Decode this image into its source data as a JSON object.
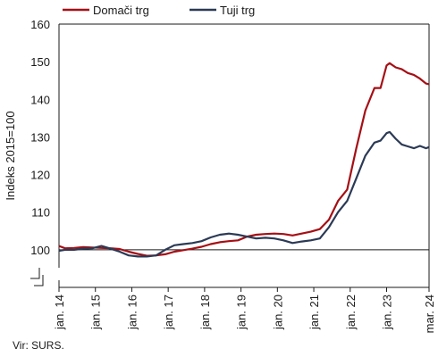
{
  "chart_data": {
    "type": "line",
    "title": "",
    "xlabel": "",
    "ylabel": "Indeks 2015=100",
    "ylim": [
      90,
      160
    ],
    "yticks": [
      100,
      110,
      120,
      130,
      140,
      150,
      160
    ],
    "reference_line": 100,
    "axis_break": true,
    "grid": false,
    "legend_position": "top",
    "x_tick_labels": [
      "jan. 14",
      "jan. 15",
      "jan. 16",
      "jan. 17",
      "jan. 18",
      "jan. 19",
      "jan. 20",
      "jan. 21",
      "jan. 22",
      "jan. 23",
      "mar. 24"
    ],
    "x_tick_values": [
      "2014-01",
      "2015-01",
      "2016-01",
      "2017-01",
      "2018-01",
      "2019-01",
      "2020-01",
      "2021-01",
      "2022-01",
      "2023-01",
      "2024-03"
    ],
    "x_start": "2014-01",
    "x_end": "2024-03",
    "series": [
      {
        "name": "Domači trg",
        "color": "#a50f15",
        "points": [
          [
            "2014-01",
            101.0
          ],
          [
            "2014-03",
            100.4
          ],
          [
            "2014-06",
            100.5
          ],
          [
            "2014-09",
            100.7
          ],
          [
            "2014-12",
            100.6
          ],
          [
            "2015-03",
            100.5
          ],
          [
            "2015-06",
            100.4
          ],
          [
            "2015-09",
            100.2
          ],
          [
            "2015-12",
            99.5
          ],
          [
            "2016-03",
            98.9
          ],
          [
            "2016-06",
            98.4
          ],
          [
            "2016-09",
            98.5
          ],
          [
            "2016-12",
            98.8
          ],
          [
            "2017-03",
            99.5
          ],
          [
            "2017-06",
            99.9
          ],
          [
            "2017-09",
            100.3
          ],
          [
            "2017-12",
            100.8
          ],
          [
            "2018-03",
            101.5
          ],
          [
            "2018-06",
            102.0
          ],
          [
            "2018-09",
            102.3
          ],
          [
            "2018-12",
            102.5
          ],
          [
            "2019-03",
            103.5
          ],
          [
            "2019-06",
            104.0
          ],
          [
            "2019-09",
            104.2
          ],
          [
            "2019-12",
            104.3
          ],
          [
            "2020-03",
            104.2
          ],
          [
            "2020-06",
            103.8
          ],
          [
            "2020-09",
            104.3
          ],
          [
            "2020-12",
            104.8
          ],
          [
            "2021-03",
            105.5
          ],
          [
            "2021-06",
            108.0
          ],
          [
            "2021-09",
            113.0
          ],
          [
            "2021-12",
            116.0
          ],
          [
            "2022-03",
            127.0
          ],
          [
            "2022-06",
            137.0
          ],
          [
            "2022-09",
            143.0
          ],
          [
            "2022-11",
            143.0
          ],
          [
            "2023-01",
            149.0
          ],
          [
            "2023-02",
            149.6
          ],
          [
            "2023-04",
            148.5
          ],
          [
            "2023-06",
            148.0
          ],
          [
            "2023-08",
            147.0
          ],
          [
            "2023-10",
            146.5
          ],
          [
            "2023-12",
            145.5
          ],
          [
            "2024-02",
            144.2
          ],
          [
            "2024-03",
            144.0
          ]
        ]
      },
      {
        "name": "Tuji trg",
        "color": "#2b3a55",
        "points": [
          [
            "2014-01",
            99.7
          ],
          [
            "2014-03",
            100.0
          ],
          [
            "2014-06",
            100.0
          ],
          [
            "2014-09",
            100.3
          ],
          [
            "2014-12",
            100.4
          ],
          [
            "2015-03",
            101.0
          ],
          [
            "2015-06",
            100.3
          ],
          [
            "2015-09",
            99.5
          ],
          [
            "2015-12",
            98.5
          ],
          [
            "2016-03",
            98.2
          ],
          [
            "2016-06",
            98.2
          ],
          [
            "2016-09",
            98.5
          ],
          [
            "2016-12",
            100.0
          ],
          [
            "2017-03",
            101.2
          ],
          [
            "2017-06",
            101.5
          ],
          [
            "2017-09",
            101.8
          ],
          [
            "2017-12",
            102.3
          ],
          [
            "2018-03",
            103.3
          ],
          [
            "2018-06",
            104.0
          ],
          [
            "2018-09",
            104.3
          ],
          [
            "2018-12",
            104.0
          ],
          [
            "2019-03",
            103.5
          ],
          [
            "2019-06",
            103.0
          ],
          [
            "2019-09",
            103.2
          ],
          [
            "2019-12",
            103.0
          ],
          [
            "2020-03",
            102.5
          ],
          [
            "2020-06",
            101.8
          ],
          [
            "2020-09",
            102.2
          ],
          [
            "2020-12",
            102.5
          ],
          [
            "2021-03",
            103.0
          ],
          [
            "2021-06",
            106.0
          ],
          [
            "2021-09",
            110.0
          ],
          [
            "2021-12",
            113.0
          ],
          [
            "2022-03",
            119.0
          ],
          [
            "2022-06",
            125.0
          ],
          [
            "2022-09",
            128.5
          ],
          [
            "2022-11",
            129.0
          ],
          [
            "2023-01",
            131.0
          ],
          [
            "2023-02",
            131.3
          ],
          [
            "2023-04",
            129.5
          ],
          [
            "2023-06",
            128.0
          ],
          [
            "2023-08",
            127.5
          ],
          [
            "2023-10",
            127.0
          ],
          [
            "2023-12",
            127.6
          ],
          [
            "2024-02",
            127.0
          ],
          [
            "2024-03",
            127.3
          ]
        ]
      }
    ]
  },
  "source_note": "Vir: SURS."
}
